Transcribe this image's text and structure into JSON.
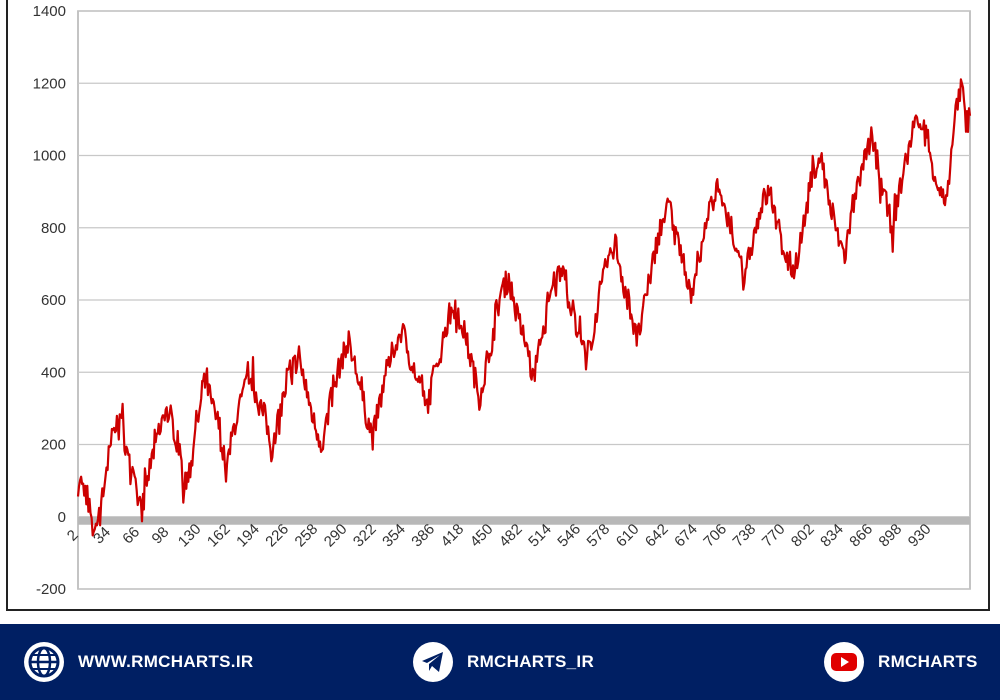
{
  "chart_data": {
    "type": "line",
    "title": "",
    "xlabel": "",
    "ylabel": "",
    "ylim": [
      -200,
      1400
    ],
    "y_ticks": [
      -200,
      0,
      200,
      400,
      600,
      800,
      1000,
      1200,
      1400
    ],
    "x_tick_labels": [
      "2",
      "34",
      "66",
      "98",
      "130",
      "162",
      "194",
      "226",
      "258",
      "290",
      "322",
      "354",
      "386",
      "418",
      "450",
      "482",
      "514",
      "546",
      "578",
      "610",
      "642",
      "674",
      "706",
      "738",
      "770",
      "802",
      "834",
      "866",
      "898",
      "930"
    ],
    "grid": "horizontal",
    "series": [
      {
        "color": "#cc0000",
        "anchor_points": [
          [
            1,
            110
          ],
          [
            8,
            60
          ],
          [
            12,
            -40
          ],
          [
            16,
            10
          ],
          [
            20,
            80
          ],
          [
            24,
            170
          ],
          [
            28,
            240
          ],
          [
            33,
            280
          ],
          [
            38,
            170
          ],
          [
            45,
            60
          ],
          [
            49,
            20
          ],
          [
            54,
            120
          ],
          [
            60,
            220
          ],
          [
            66,
            300
          ],
          [
            72,
            250
          ],
          [
            78,
            180
          ],
          [
            80,
            70
          ],
          [
            86,
            160
          ],
          [
            92,
            290
          ],
          [
            97,
            380
          ],
          [
            102,
            300
          ],
          [
            108,
            240
          ],
          [
            112,
            120
          ],
          [
            118,
            250
          ],
          [
            126,
            350
          ],
          [
            130,
            400
          ],
          [
            136,
            320
          ],
          [
            142,
            270
          ],
          [
            146,
            180
          ],
          [
            152,
            290
          ],
          [
            160,
            400
          ],
          [
            166,
            440
          ],
          [
            172,
            360
          ],
          [
            178,
            260
          ],
          [
            184,
            200
          ],
          [
            190,
            310
          ],
          [
            198,
            430
          ],
          [
            204,
            480
          ],
          [
            210,
            400
          ],
          [
            216,
            300
          ],
          [
            222,
            220
          ],
          [
            230,
            360
          ],
          [
            238,
            470
          ],
          [
            244,
            520
          ],
          [
            250,
            440
          ],
          [
            256,
            380
          ],
          [
            262,
            300
          ],
          [
            270,
            410
          ],
          [
            278,
            540
          ],
          [
            284,
            590
          ],
          [
            290,
            520
          ],
          [
            296,
            430
          ],
          [
            302,
            330
          ],
          [
            310,
            460
          ],
          [
            318,
            620
          ],
          [
            324,
            660
          ],
          [
            330,
            560
          ],
          [
            338,
            470
          ],
          [
            342,
            380
          ],
          [
            350,
            510
          ],
          [
            358,
            650
          ],
          [
            364,
            700
          ],
          [
            370,
            600
          ],
          [
            376,
            520
          ],
          [
            382,
            430
          ],
          [
            390,
            560
          ],
          [
            398,
            710
          ],
          [
            404,
            760
          ],
          [
            410,
            650
          ],
          [
            416,
            570
          ],
          [
            420,
            480
          ],
          [
            428,
            620
          ],
          [
            436,
            780
          ],
          [
            444,
            860
          ],
          [
            450,
            770
          ],
          [
            456,
            690
          ],
          [
            460,
            610
          ],
          [
            468,
            740
          ],
          [
            476,
            870
          ],
          [
            482,
            920
          ],
          [
            488,
            820
          ],
          [
            494,
            740
          ],
          [
            500,
            670
          ],
          [
            508,
            780
          ],
          [
            514,
            870
          ],
          [
            520,
            900
          ],
          [
            526,
            800
          ],
          [
            532,
            720
          ],
          [
            538,
            680
          ],
          [
            546,
            820
          ],
          [
            552,
            960
          ],
          [
            558,
            1000
          ],
          [
            564,
            880
          ],
          [
            570,
            790
          ],
          [
            576,
            720
          ],
          [
            582,
            860
          ],
          [
            590,
            970
          ],
          [
            596,
            1050
          ],
          [
            602,
            960
          ],
          [
            608,
            850
          ],
          [
            612,
            800
          ],
          [
            620,
            960
          ],
          [
            628,
            1090
          ],
          [
            634,
            1100
          ],
          [
            640,
            1000
          ],
          [
            646,
            920
          ],
          [
            652,
            860
          ],
          [
            656,
            990
          ],
          [
            660,
            1150
          ],
          [
            664,
            1200
          ],
          [
            667,
            1080
          ],
          [
            670,
            1110
          ]
        ]
      }
    ]
  },
  "footer": {
    "website": "WWW.RMCHARTS.IR",
    "telegram": "RMCHARTS_IR",
    "youtube": "RMCHARTS"
  }
}
